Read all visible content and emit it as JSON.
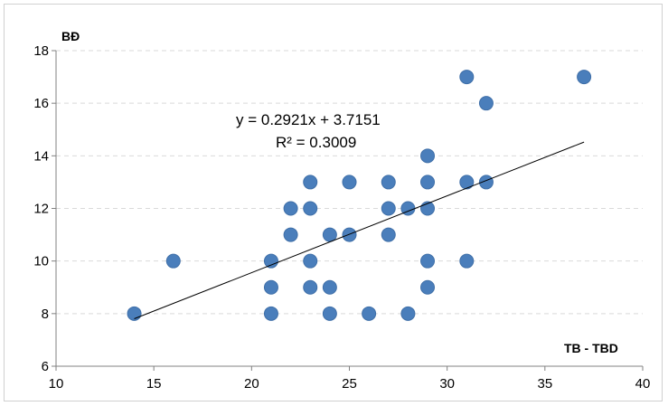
{
  "chart_data": {
    "type": "scatter",
    "title": "",
    "xlabel": "TB - TBD",
    "ylabel": "BĐ",
    "xlim": [
      10,
      40
    ],
    "ylim": [
      6,
      18
    ],
    "x_ticks": [
      10,
      15,
      20,
      25,
      30,
      35,
      40
    ],
    "y_ticks": [
      6,
      8,
      10,
      12,
      14,
      16,
      18
    ],
    "grid": "horizontal-dashed",
    "marker_color": "#4a7ebb",
    "points": [
      {
        "x": 14,
        "y": 8
      },
      {
        "x": 16,
        "y": 10
      },
      {
        "x": 21,
        "y": 8
      },
      {
        "x": 21,
        "y": 9
      },
      {
        "x": 21,
        "y": 10
      },
      {
        "x": 22,
        "y": 11
      },
      {
        "x": 22,
        "y": 12
      },
      {
        "x": 23,
        "y": 9
      },
      {
        "x": 23,
        "y": 10
      },
      {
        "x": 23,
        "y": 12
      },
      {
        "x": 23,
        "y": 13
      },
      {
        "x": 24,
        "y": 8
      },
      {
        "x": 24,
        "y": 9
      },
      {
        "x": 24,
        "y": 11
      },
      {
        "x": 25,
        "y": 11
      },
      {
        "x": 25,
        "y": 13
      },
      {
        "x": 26,
        "y": 8
      },
      {
        "x": 27,
        "y": 11
      },
      {
        "x": 27,
        "y": 12
      },
      {
        "x": 27,
        "y": 13
      },
      {
        "x": 28,
        "y": 8
      },
      {
        "x": 28,
        "y": 12
      },
      {
        "x": 29,
        "y": 9
      },
      {
        "x": 29,
        "y": 10
      },
      {
        "x": 29,
        "y": 12
      },
      {
        "x": 29,
        "y": 13
      },
      {
        "x": 29,
        "y": 14
      },
      {
        "x": 31,
        "y": 10
      },
      {
        "x": 31,
        "y": 13
      },
      {
        "x": 31,
        "y": 17
      },
      {
        "x": 32,
        "y": 13
      },
      {
        "x": 32,
        "y": 16
      },
      {
        "x": 37,
        "y": 17
      }
    ],
    "trendline": {
      "slope": 0.2921,
      "intercept": 3.7151,
      "x_range": [
        14,
        37
      ],
      "equation_label": "y = 0.2921x + 3.7151",
      "r2_label": "R² = 0.3009"
    }
  }
}
